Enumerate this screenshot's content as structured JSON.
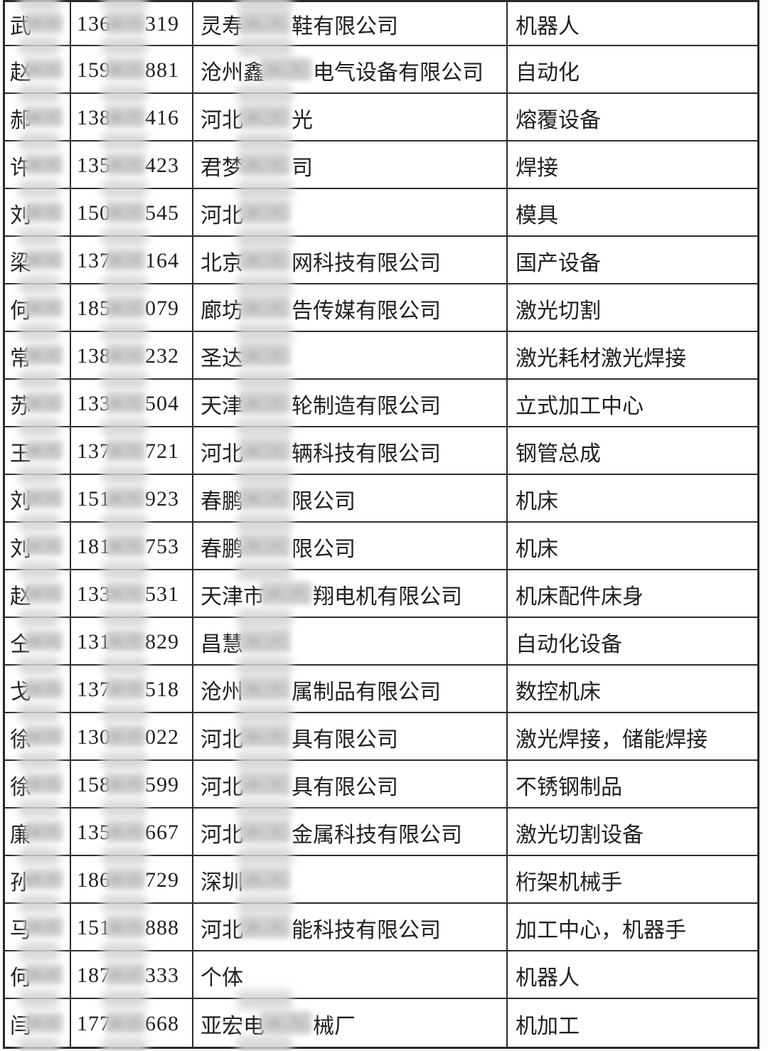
{
  "table": {
    "rows": [
      {
        "name": "武",
        "name_redacted": true,
        "phone_prefix": "136",
        "phone_suffix": "319",
        "company_prefix": "灵寿",
        "company_suffix": "鞋有限公司",
        "company_redacted": true,
        "category": "机器人"
      },
      {
        "name": "赵",
        "name_redacted": true,
        "phone_prefix": "159",
        "phone_suffix": "881",
        "company_prefix": "沧州鑫",
        "company_suffix": "电气设备有限公司",
        "company_redacted": true,
        "category": "自动化"
      },
      {
        "name": "郝",
        "name_redacted": true,
        "phone_prefix": "138",
        "phone_suffix": "416",
        "company_prefix": "河北",
        "company_suffix": "光",
        "company_redacted": true,
        "category": "熔覆设备"
      },
      {
        "name": "许",
        "name_redacted": true,
        "phone_prefix": "135",
        "phone_suffix": "423",
        "company_prefix": "君梦",
        "company_suffix": "司",
        "company_redacted": true,
        "category": "焊接"
      },
      {
        "name": "刘",
        "name_redacted": true,
        "phone_prefix": "150",
        "phone_suffix": "545",
        "company_prefix": "河北",
        "company_suffix": "",
        "company_redacted": true,
        "category": "模具"
      },
      {
        "name": "梁",
        "name_redacted": true,
        "phone_prefix": "137",
        "phone_suffix": "164",
        "company_prefix": "北京",
        "company_suffix": "网科技有限公司",
        "company_redacted": true,
        "category": "国产设备"
      },
      {
        "name": "何",
        "name_redacted": true,
        "phone_prefix": "185",
        "phone_suffix": "079",
        "company_prefix": "廊坊",
        "company_suffix": "告传媒有限公司",
        "company_redacted": true,
        "category": "激光切割"
      },
      {
        "name": "常",
        "name_redacted": true,
        "phone_prefix": "138",
        "phone_suffix": "232",
        "company_prefix": "圣达",
        "company_suffix": "",
        "company_redacted": true,
        "category": "激光耗材激光焊接"
      },
      {
        "name": "苏",
        "name_redacted": true,
        "phone_prefix": "133",
        "phone_suffix": "504",
        "company_prefix": "天津",
        "company_suffix": "轮制造有限公司",
        "company_redacted": true,
        "category": "立式加工中心"
      },
      {
        "name": "王",
        "name_redacted": true,
        "phone_prefix": "137",
        "phone_suffix": "721",
        "company_prefix": "河北",
        "company_suffix": "辆科技有限公司",
        "company_redacted": true,
        "category": "钢管总成"
      },
      {
        "name": "刘",
        "name_redacted": true,
        "phone_prefix": "151",
        "phone_suffix": "923",
        "company_prefix": "春鹏",
        "company_suffix": "限公司",
        "company_redacted": true,
        "category": "机床"
      },
      {
        "name": "刘",
        "name_redacted": true,
        "phone_prefix": "181",
        "phone_suffix": "753",
        "company_prefix": "春鹏",
        "company_suffix": "限公司",
        "company_redacted": true,
        "category": "机床"
      },
      {
        "name": "赵",
        "name_redacted": true,
        "phone_prefix": "133",
        "phone_suffix": "531",
        "company_prefix": "天津市",
        "company_suffix": "翔电机有限公司",
        "company_redacted": true,
        "category": "机床配件床身"
      },
      {
        "name": "仝",
        "name_redacted": true,
        "phone_prefix": "131",
        "phone_suffix": "829",
        "company_prefix": "昌慧",
        "company_suffix": "",
        "company_redacted": true,
        "category": "自动化设备"
      },
      {
        "name": "戈",
        "name_redacted": true,
        "phone_prefix": "137",
        "phone_suffix": "518",
        "company_prefix": "沧州",
        "company_suffix": "属制品有限公司",
        "company_redacted": true,
        "category": "数控机床"
      },
      {
        "name": "徐",
        "name_redacted": true,
        "phone_prefix": "130",
        "phone_suffix": "022",
        "company_prefix": "河北",
        "company_suffix": "具有限公司",
        "company_redacted": true,
        "category": "激光焊接，储能焊接"
      },
      {
        "name": "徐",
        "name_redacted": true,
        "phone_prefix": "158",
        "phone_suffix": "599",
        "company_prefix": "河北",
        "company_suffix": "具有限公司",
        "company_redacted": true,
        "category": "不锈钢制品"
      },
      {
        "name": "廉",
        "name_redacted": true,
        "phone_prefix": "135",
        "phone_suffix": "667",
        "company_prefix": "河北",
        "company_suffix": "金属科技有限公司",
        "company_redacted": true,
        "category": "激光切割设备"
      },
      {
        "name": "孙",
        "name_redacted": true,
        "phone_prefix": "186",
        "phone_suffix": "729",
        "company_prefix": "深圳",
        "company_suffix": "",
        "company_redacted": true,
        "category": "桁架机械手"
      },
      {
        "name": "马",
        "name_redacted": true,
        "phone_prefix": "151",
        "phone_suffix": "888",
        "company_prefix": "河北",
        "company_suffix": "能科技有限公司",
        "company_redacted": true,
        "category": "加工中心，机器手"
      },
      {
        "name": "何",
        "name_redacted": true,
        "phone_prefix": "187",
        "phone_suffix": "333",
        "company_prefix": "个体",
        "company_suffix": "",
        "company_redacted": false,
        "category": "机器人"
      },
      {
        "name": "闫",
        "name_redacted": true,
        "phone_prefix": "177",
        "phone_suffix": "668",
        "company_prefix": "亚宏电",
        "company_suffix": "械厂",
        "company_redacted": true,
        "category": "机加工"
      }
    ]
  },
  "colors": {
    "border": "#2d2d2d",
    "text": "#1f1f1f",
    "smudge": "#cccccc",
    "background": "#fdfdfd"
  }
}
